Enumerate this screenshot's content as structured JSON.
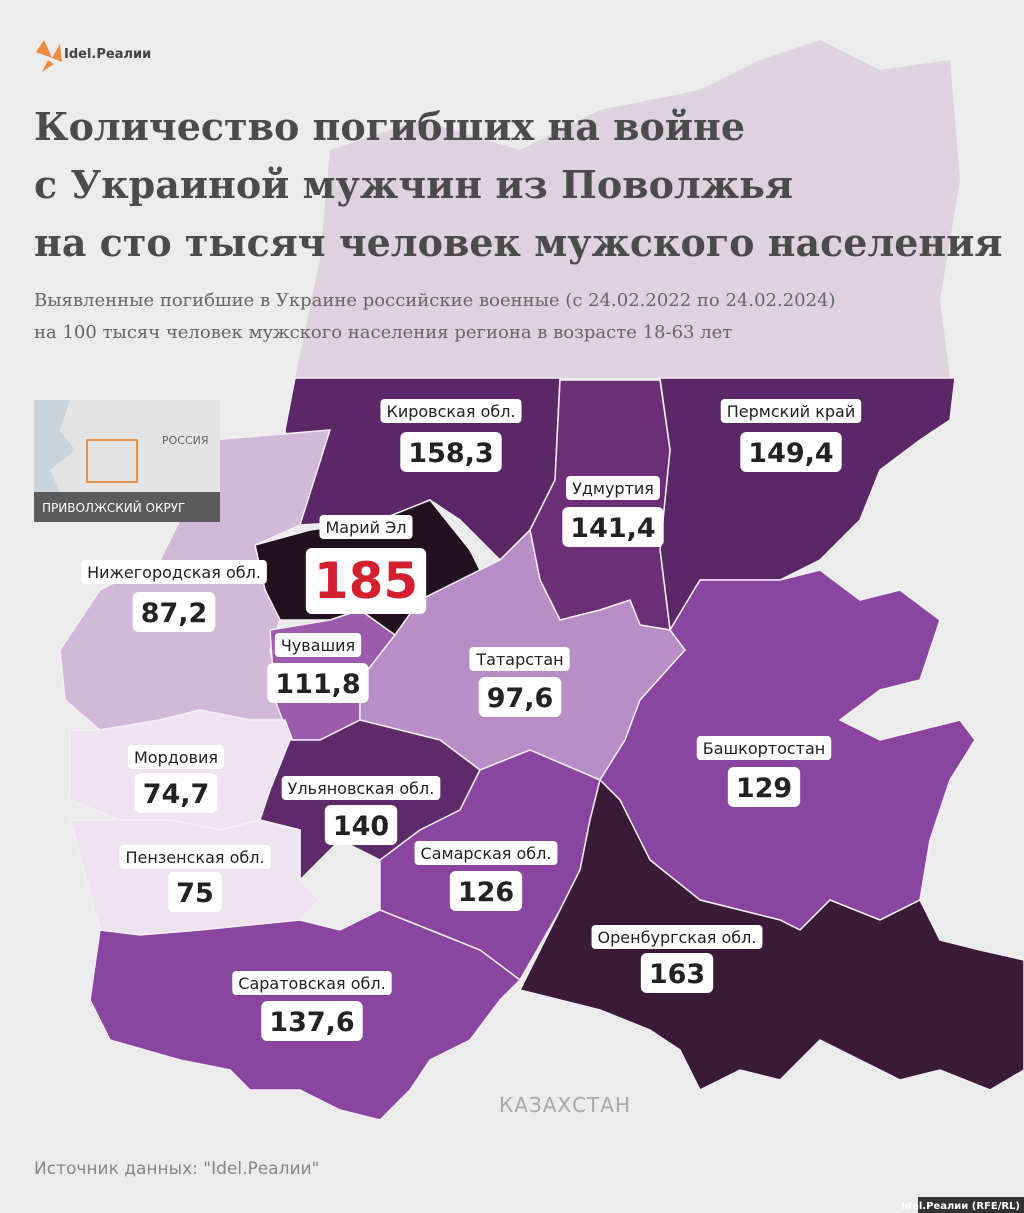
{
  "logo": "Idel.Реалии",
  "title": [
    "Количество погибших на войне",
    "с Украиной мужчин из Поволжья",
    "на сто тысяч человек мужского населения"
  ],
  "subtitle": [
    "Выявленные погибшие в Украине российские военные (с 24.02.2022 по 24.02.2024)",
    "на 100 тысяч человек мужского населения региона в возрасте 18-63 лет"
  ],
  "inset": {
    "country": "РОССИЯ",
    "caption": "ПРИВОЛЖСКИЙ ОКРУГ"
  },
  "neighbor": "КАЗАХСТАН",
  "regions": [
    {
      "name": "Кировская обл.",
      "value": 158.3,
      "value_label": "158,3",
      "color": "#5c2766"
    },
    {
      "name": "Пермский край",
      "value": 149.4,
      "value_label": "149,4",
      "color": "#5c2766"
    },
    {
      "name": "Удмуртия",
      "value": 141.4,
      "value_label": "141,4",
      "color": "#6b2e77"
    },
    {
      "name": "Марий Эл",
      "value": 185,
      "color": "#21101e",
      "highlight": true
    },
    {
      "name": "Нижегородская обл.",
      "value": 87.2,
      "value_label": "87,2",
      "color": "#d2b8d9"
    },
    {
      "name": "Чувашия",
      "value": 111.8,
      "value_label": "111,8",
      "color": "#9c5bac"
    },
    {
      "name": "Татарстан",
      "value": 97.6,
      "value_label": "97,6",
      "color": "#b98dc5"
    },
    {
      "name": "Башкортостан",
      "value": 129,
      "color": "#8a45a0"
    },
    {
      "name": "Мордовия",
      "value": 74.7,
      "value_label": "74,7",
      "color": "#ede4ef"
    },
    {
      "name": "Ульяновская обл.",
      "value": 140,
      "color": "#5f2a69"
    },
    {
      "name": "Пензенская обл.",
      "value": 75,
      "color": "#ede4ef"
    },
    {
      "name": "Самарская обл.",
      "value": 126,
      "color": "#8a45a0"
    },
    {
      "name": "Оренбургская обл.",
      "value": 163,
      "color": "#391a37"
    },
    {
      "name": "Саратовская обл.",
      "value": 137.6,
      "value_label": "137,6",
      "color": "#8a45a0"
    }
  ],
  "source": "Источник данных: \"Idel.Реалии\"",
  "credit": "Idel.Реалии (RFE/RL)"
}
